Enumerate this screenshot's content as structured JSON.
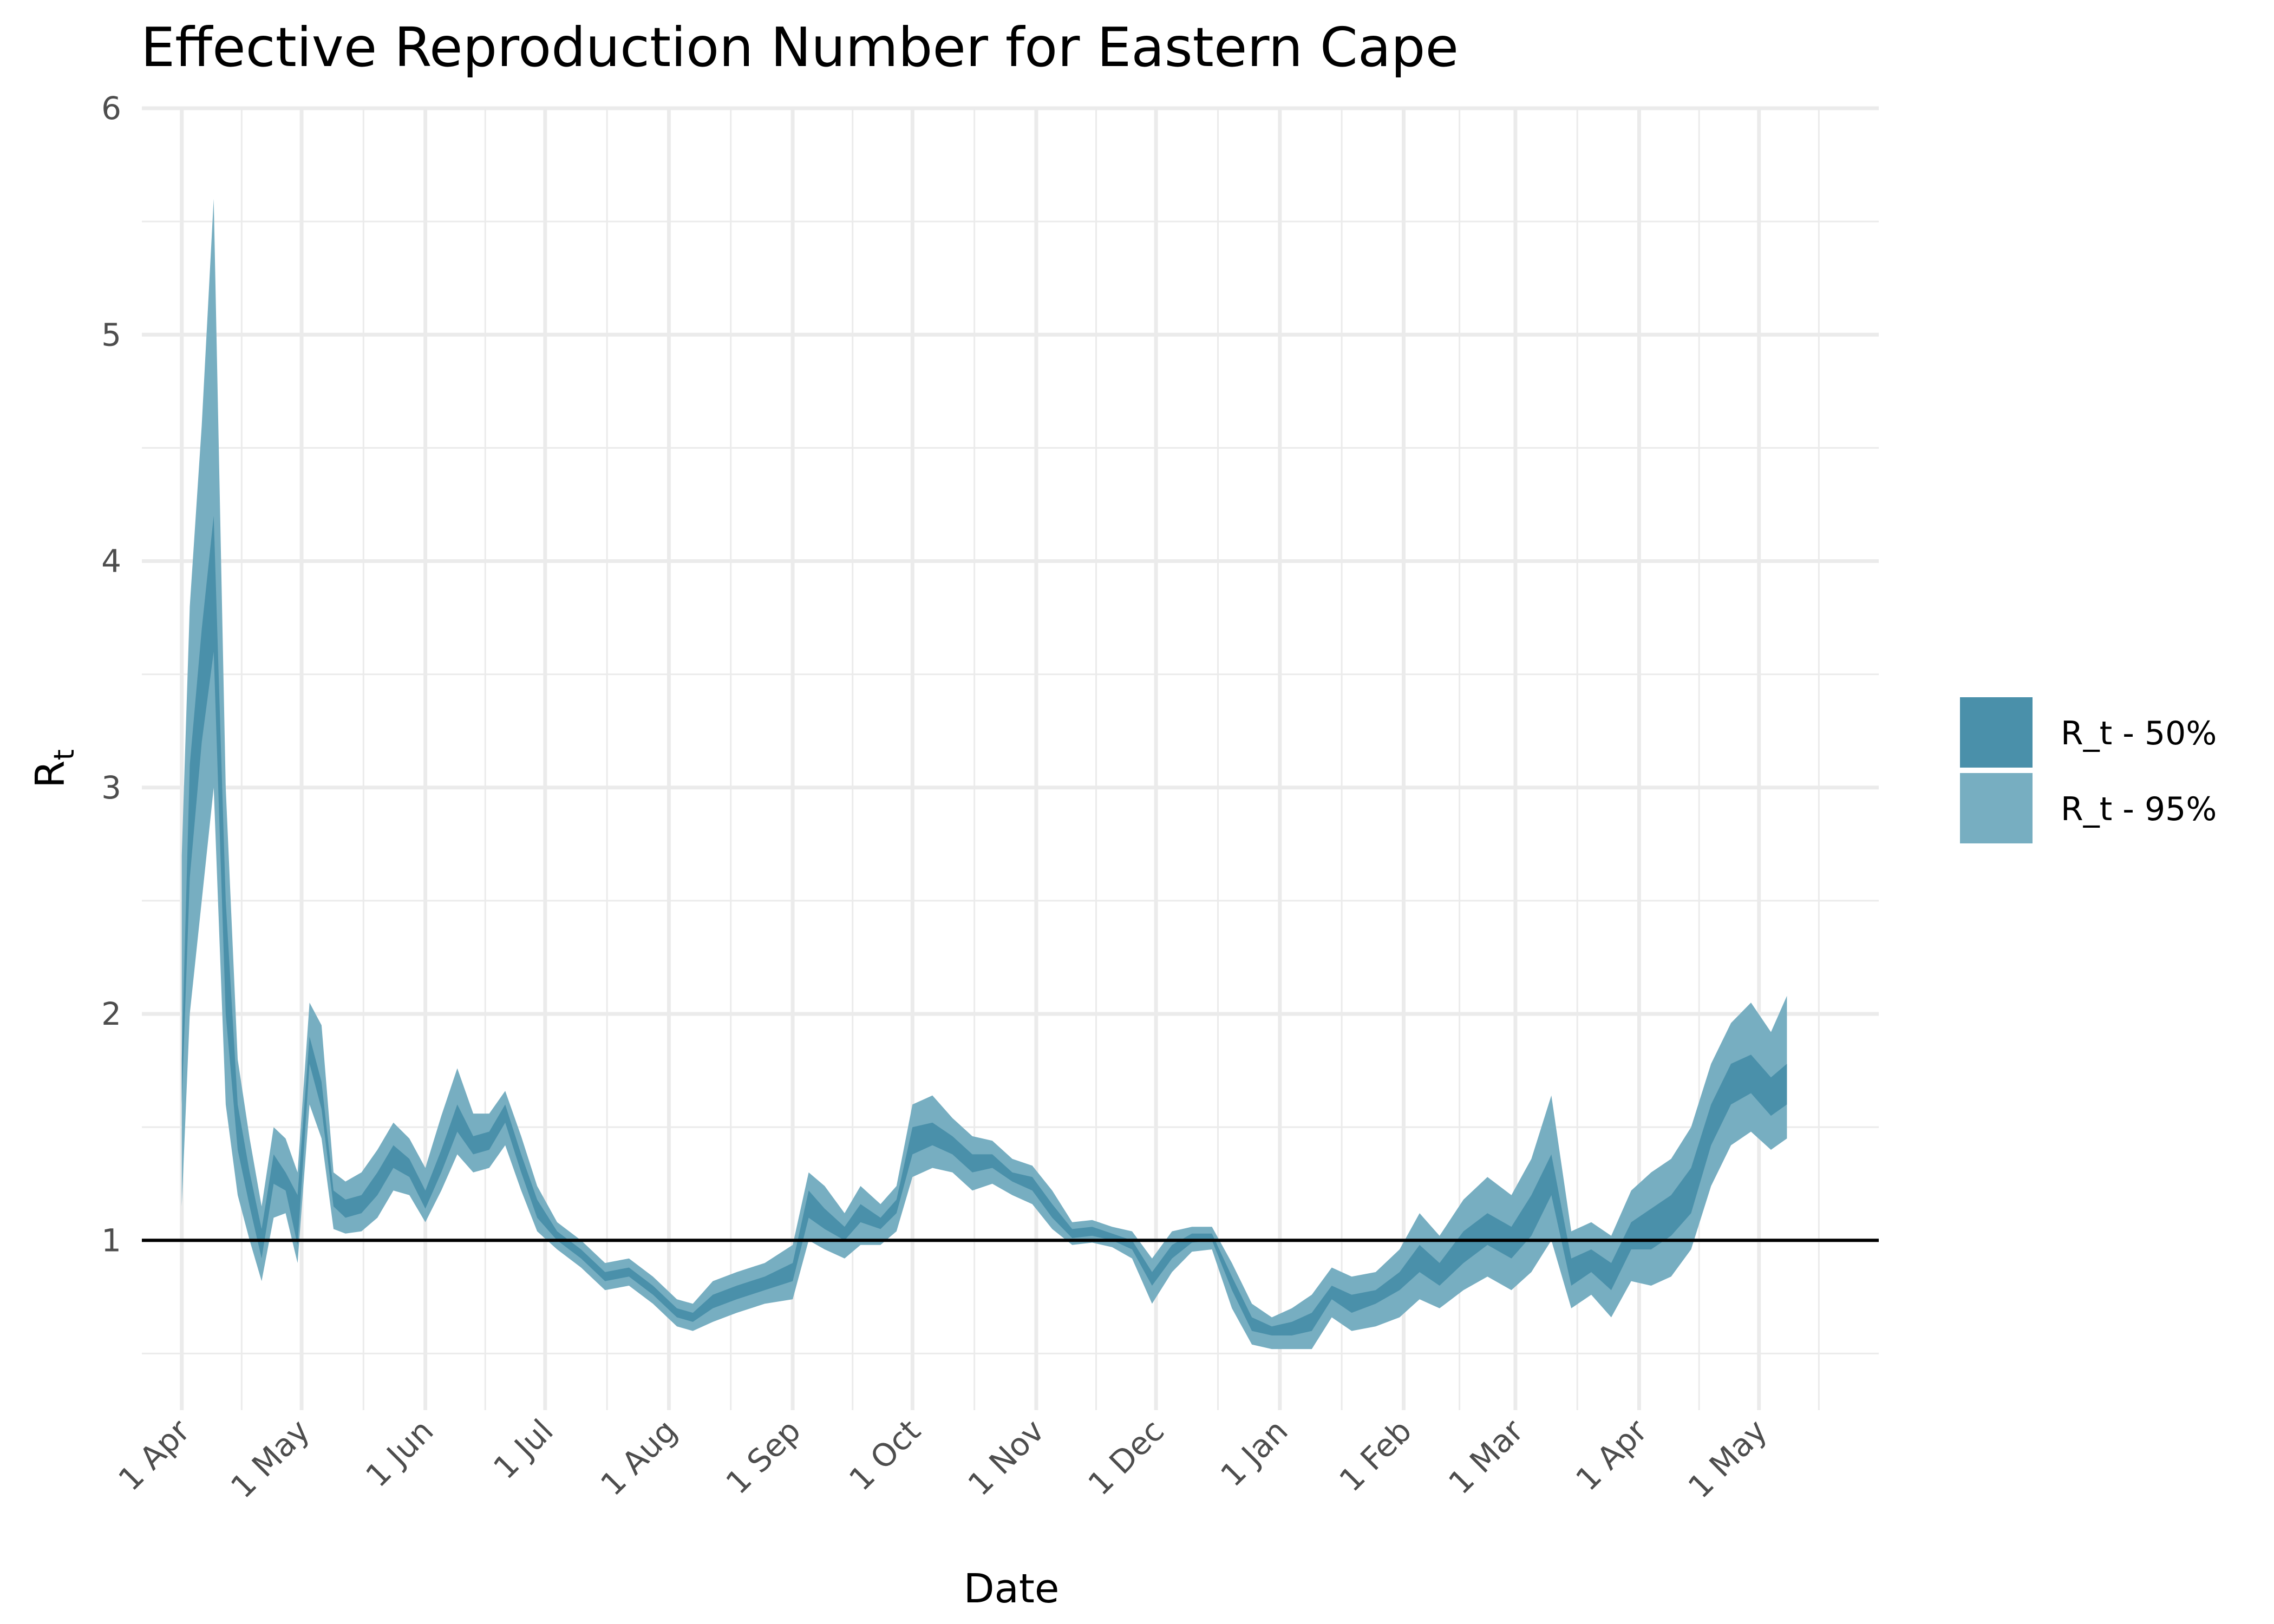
{
  "chart_data": {
    "type": "area",
    "title": "Effective Reproduction Number for Eastern Cape",
    "xlabel": "Date",
    "ylabel": "R",
    "ylabel_subscript": "t",
    "x_ticks": [
      "1 Apr",
      "1 May",
      "1 Jun",
      "1 Jul",
      "1 Aug",
      "1 Sep",
      "1 Oct",
      "1 Nov",
      "1 Dec",
      "1 Jan",
      "1 Feb",
      "1 Mar",
      "1 Apr",
      "1 May"
    ],
    "y_ticks": [
      "1",
      "2",
      "3",
      "4",
      "5",
      "6"
    ],
    "xlim": [
      "2020-03-22",
      "2021-05-31"
    ],
    "ylim": [
      0.25,
      6.0
    ],
    "reference_line": 1,
    "grid": true,
    "legend_position": "right",
    "colors": {
      "band50": "#4a90aa",
      "band95": "#77aec1",
      "reference": "#000000",
      "grid": "#ebebeb"
    },
    "series": [
      {
        "name": "R_t - 50%",
        "x": [
          "2020-04-01",
          "2020-04-03",
          "2020-04-06",
          "2020-04-09",
          "2020-04-12",
          "2020-04-15",
          "2020-04-18",
          "2020-04-21",
          "2020-04-24",
          "2020-04-27",
          "2020-04-30",
          "2020-05-03",
          "2020-05-06",
          "2020-05-09",
          "2020-05-12",
          "2020-05-16",
          "2020-05-20",
          "2020-05-24",
          "2020-05-28",
          "2020-06-01",
          "2020-06-05",
          "2020-06-09",
          "2020-06-13",
          "2020-06-17",
          "2020-06-21",
          "2020-06-25",
          "2020-06-29",
          "2020-07-04",
          "2020-07-10",
          "2020-07-16",
          "2020-07-22",
          "2020-07-28",
          "2020-08-03",
          "2020-08-07",
          "2020-08-12",
          "2020-08-18",
          "2020-08-25",
          "2020-09-01",
          "2020-09-05",
          "2020-09-09",
          "2020-09-14",
          "2020-09-18",
          "2020-09-23",
          "2020-09-27",
          "2020-10-01",
          "2020-10-06",
          "2020-10-11",
          "2020-10-16",
          "2020-10-21",
          "2020-10-26",
          "2020-10-31",
          "2020-11-05",
          "2020-11-10",
          "2020-11-15",
          "2020-11-20",
          "2020-11-25",
          "2020-11-30",
          "2020-12-05",
          "2020-12-10",
          "2020-12-15",
          "2020-12-20",
          "2020-12-25",
          "2020-12-30",
          "2021-01-04",
          "2021-01-09",
          "2021-01-14",
          "2021-01-19",
          "2021-01-25",
          "2021-01-31",
          "2021-02-05",
          "2021-02-10",
          "2021-02-16",
          "2021-02-22",
          "2021-02-28",
          "2021-03-05",
          "2021-03-10",
          "2021-03-15",
          "2021-03-20",
          "2021-03-25",
          "2021-03-30",
          "2021-04-04",
          "2021-04-09",
          "2021-04-14",
          "2021-04-19",
          "2021-04-24",
          "2021-04-29",
          "2021-05-04",
          "2021-05-08"
        ],
        "lower": [
          1.6,
          2.6,
          3.2,
          3.6,
          2.0,
          1.4,
          1.15,
          0.92,
          1.25,
          1.22,
          0.98,
          1.78,
          1.58,
          1.15,
          1.1,
          1.12,
          1.2,
          1.32,
          1.28,
          1.14,
          1.3,
          1.48,
          1.38,
          1.4,
          1.52,
          1.3,
          1.1,
          1.0,
          0.92,
          0.82,
          0.84,
          0.76,
          0.66,
          0.64,
          0.7,
          0.74,
          0.78,
          0.82,
          1.1,
          1.05,
          1.0,
          1.08,
          1.05,
          1.12,
          1.38,
          1.42,
          1.38,
          1.3,
          1.32,
          1.26,
          1.22,
          1.1,
          1.01,
          1.02,
          1.0,
          0.96,
          0.8,
          0.92,
          0.99,
          1.0,
          0.78,
          0.6,
          0.58,
          0.58,
          0.6,
          0.74,
          0.68,
          0.72,
          0.78,
          0.86,
          0.8,
          0.9,
          0.98,
          0.92,
          1.02,
          1.2,
          0.8,
          0.86,
          0.78,
          0.96,
          0.96,
          1.02,
          1.12,
          1.42,
          1.6,
          1.65,
          1.55,
          1.6
        ],
        "upper": [
          1.8,
          3.1,
          3.7,
          4.2,
          2.5,
          1.6,
          1.3,
          1.05,
          1.38,
          1.3,
          1.2,
          1.9,
          1.7,
          1.22,
          1.18,
          1.2,
          1.3,
          1.42,
          1.36,
          1.22,
          1.4,
          1.6,
          1.46,
          1.48,
          1.6,
          1.38,
          1.18,
          1.04,
          0.96,
          0.86,
          0.88,
          0.8,
          0.7,
          0.68,
          0.76,
          0.8,
          0.84,
          0.9,
          1.22,
          1.14,
          1.06,
          1.16,
          1.1,
          1.18,
          1.5,
          1.52,
          1.46,
          1.38,
          1.38,
          1.3,
          1.28,
          1.16,
          1.05,
          1.06,
          1.03,
          1.0,
          0.86,
          0.98,
          1.03,
          1.03,
          0.84,
          0.66,
          0.62,
          0.64,
          0.68,
          0.8,
          0.76,
          0.78,
          0.86,
          0.98,
          0.9,
          1.04,
          1.12,
          1.06,
          1.2,
          1.38,
          0.92,
          0.96,
          0.9,
          1.08,
          1.14,
          1.2,
          1.32,
          1.6,
          1.78,
          1.82,
          1.72,
          1.78
        ]
      },
      {
        "name": "R_t - 95%",
        "x": [
          "2020-04-01",
          "2020-04-03",
          "2020-04-06",
          "2020-04-09",
          "2020-04-12",
          "2020-04-15",
          "2020-04-18",
          "2020-04-21",
          "2020-04-24",
          "2020-04-27",
          "2020-04-30",
          "2020-05-03",
          "2020-05-06",
          "2020-05-09",
          "2020-05-12",
          "2020-05-16",
          "2020-05-20",
          "2020-05-24",
          "2020-05-28",
          "2020-06-01",
          "2020-06-05",
          "2020-06-09",
          "2020-06-13",
          "2020-06-17",
          "2020-06-21",
          "2020-06-25",
          "2020-06-29",
          "2020-07-04",
          "2020-07-10",
          "2020-07-16",
          "2020-07-22",
          "2020-07-28",
          "2020-08-03",
          "2020-08-07",
          "2020-08-12",
          "2020-08-18",
          "2020-08-25",
          "2020-09-01",
          "2020-09-05",
          "2020-09-09",
          "2020-09-14",
          "2020-09-18",
          "2020-09-23",
          "2020-09-27",
          "2020-10-01",
          "2020-10-06",
          "2020-10-11",
          "2020-10-16",
          "2020-10-21",
          "2020-10-26",
          "2020-10-31",
          "2020-11-05",
          "2020-11-10",
          "2020-11-15",
          "2020-11-20",
          "2020-11-25",
          "2020-11-30",
          "2020-12-05",
          "2020-12-10",
          "2020-12-15",
          "2020-12-20",
          "2020-12-25",
          "2020-12-30",
          "2021-01-04",
          "2021-01-09",
          "2021-01-14",
          "2021-01-19",
          "2021-01-25",
          "2021-01-31",
          "2021-02-05",
          "2021-02-10",
          "2021-02-16",
          "2021-02-22",
          "2021-02-28",
          "2021-03-05",
          "2021-03-10",
          "2021-03-15",
          "2021-03-20",
          "2021-03-25",
          "2021-03-30",
          "2021-04-04",
          "2021-04-09",
          "2021-04-14",
          "2021-04-19",
          "2021-04-24",
          "2021-04-29",
          "2021-05-04",
          "2021-05-08"
        ],
        "lower": [
          1.15,
          2.0,
          2.5,
          3.0,
          1.6,
          1.2,
          1.0,
          0.82,
          1.1,
          1.12,
          0.9,
          1.6,
          1.45,
          1.05,
          1.03,
          1.04,
          1.1,
          1.22,
          1.2,
          1.08,
          1.22,
          1.38,
          1.3,
          1.32,
          1.42,
          1.22,
          1.04,
          0.96,
          0.88,
          0.78,
          0.8,
          0.72,
          0.62,
          0.6,
          0.64,
          0.68,
          0.72,
          0.74,
          1.0,
          0.96,
          0.92,
          0.98,
          0.98,
          1.04,
          1.28,
          1.32,
          1.3,
          1.22,
          1.25,
          1.2,
          1.16,
          1.05,
          0.98,
          0.99,
          0.97,
          0.92,
          0.72,
          0.86,
          0.95,
          0.96,
          0.7,
          0.54,
          0.52,
          0.52,
          0.52,
          0.66,
          0.6,
          0.62,
          0.66,
          0.74,
          0.7,
          0.78,
          0.84,
          0.78,
          0.86,
          1.0,
          0.7,
          0.76,
          0.66,
          0.82,
          0.8,
          0.84,
          0.96,
          1.24,
          1.42,
          1.48,
          1.4,
          1.45
        ],
        "upper": [
          2.7,
          3.8,
          4.6,
          5.6,
          3.0,
          1.8,
          1.45,
          1.15,
          1.5,
          1.45,
          1.3,
          2.05,
          1.95,
          1.3,
          1.26,
          1.3,
          1.4,
          1.52,
          1.45,
          1.32,
          1.55,
          1.76,
          1.56,
          1.56,
          1.66,
          1.46,
          1.24,
          1.08,
          1.0,
          0.9,
          0.92,
          0.84,
          0.74,
          0.72,
          0.82,
          0.86,
          0.9,
          0.98,
          1.3,
          1.24,
          1.12,
          1.24,
          1.16,
          1.24,
          1.6,
          1.64,
          1.54,
          1.46,
          1.44,
          1.36,
          1.33,
          1.22,
          1.08,
          1.09,
          1.06,
          1.04,
          0.92,
          1.04,
          1.06,
          1.06,
          0.9,
          0.72,
          0.66,
          0.7,
          0.76,
          0.88,
          0.84,
          0.86,
          0.96,
          1.12,
          1.02,
          1.18,
          1.28,
          1.2,
          1.36,
          1.64,
          1.04,
          1.08,
          1.02,
          1.22,
          1.3,
          1.36,
          1.5,
          1.78,
          1.96,
          2.05,
          1.92,
          2.08
        ]
      }
    ]
  }
}
